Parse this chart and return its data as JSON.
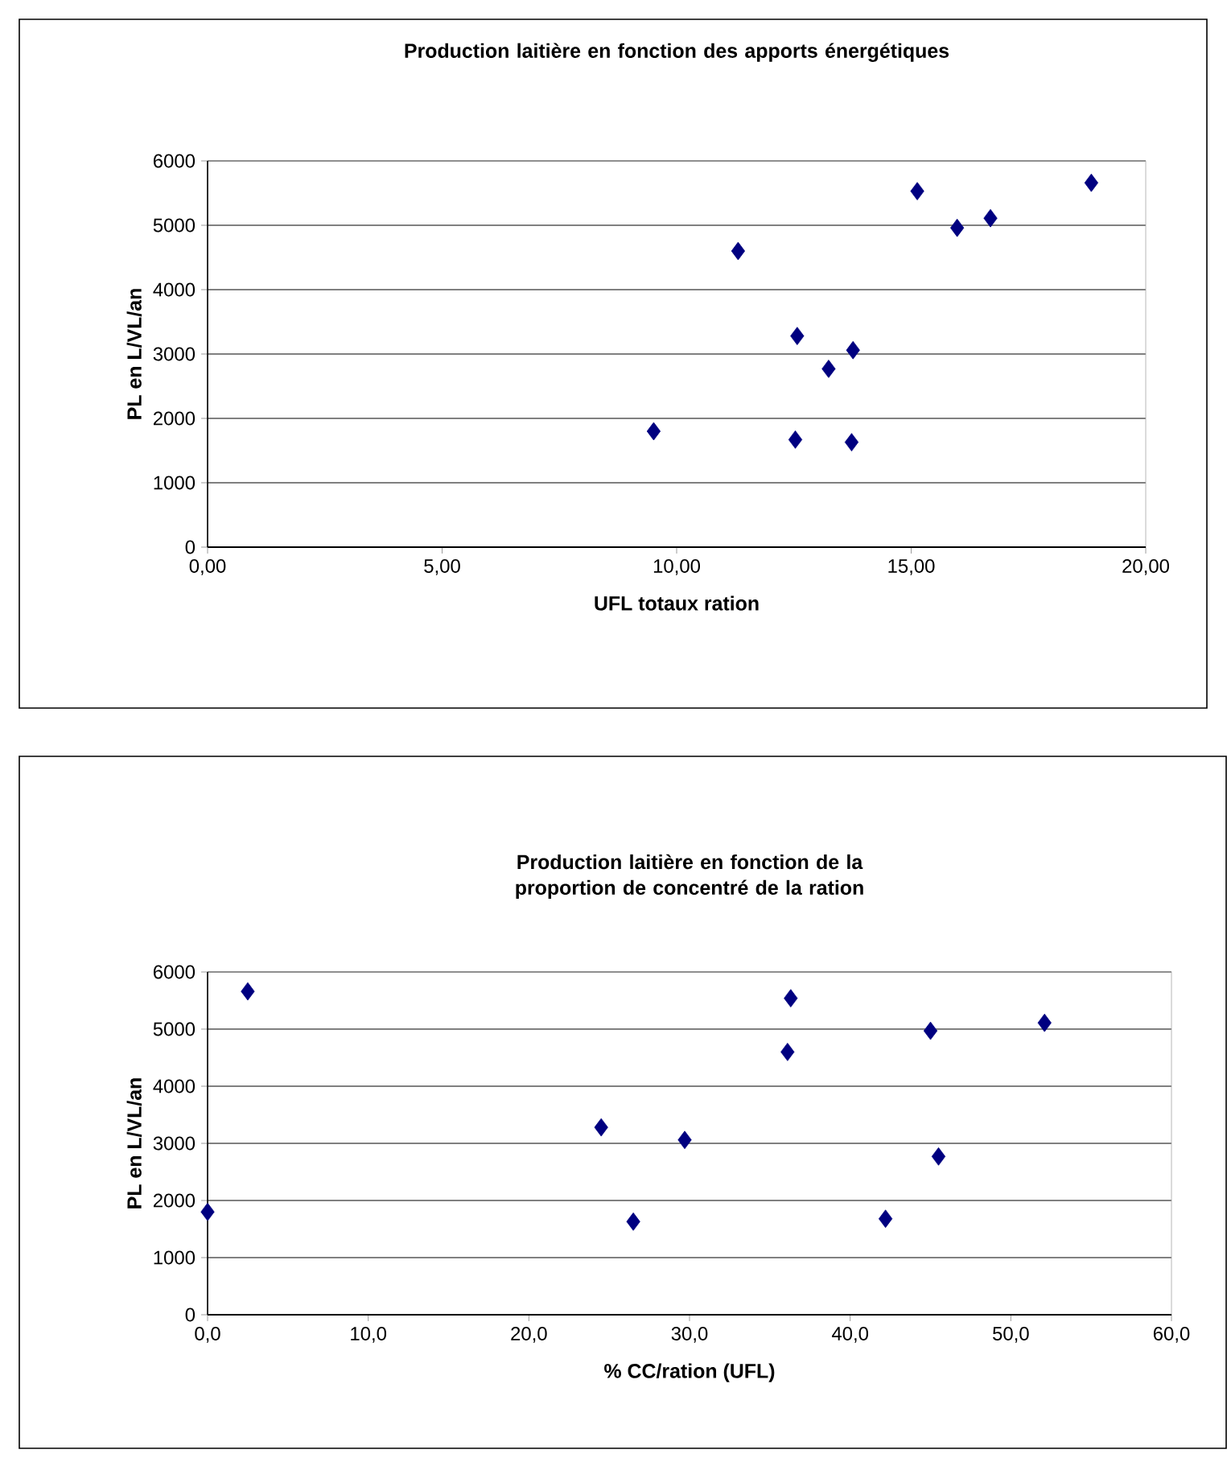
{
  "chart_data": [
    {
      "type": "scatter",
      "title": "Production laitière en fonction des apports énergétiques",
      "xlabel": "UFL totaux ration",
      "ylabel": "PL en L/VL/an",
      "x": [
        9.51,
        11.31,
        12.57,
        13.24,
        13.76,
        12.53,
        13.73,
        15.13,
        15.98,
        16.69,
        18.84
      ],
      "values": [
        1800,
        4600,
        3280,
        2770,
        3060,
        1670,
        1630,
        5530,
        4960,
        5110,
        5660
      ],
      "color": "#000080",
      "marker": "diamond",
      "grid": "y",
      "xlim": [
        0,
        20
      ],
      "ylim": [
        0,
        6000
      ],
      "xticks": [
        {
          "value": 0,
          "label": "0,00"
        },
        {
          "value": 5,
          "label": "5,00"
        },
        {
          "value": 10,
          "label": "10,00"
        },
        {
          "value": 15,
          "label": "15,00"
        },
        {
          "value": 20,
          "label": "20,00"
        }
      ],
      "yticks": [
        0,
        1000,
        2000,
        3000,
        4000,
        5000,
        6000
      ]
    },
    {
      "type": "scatter",
      "title": "Production laitière en fonction de la proportion de concentré de la ration",
      "xlabel": "% CC/ration (UFL)",
      "ylabel": "PL en L/VL/an",
      "x": [
        0,
        2.5,
        24.5,
        26.5,
        29.7,
        36.1,
        36.3,
        42.2,
        45.0,
        45.5,
        52.1
      ],
      "values": [
        1800,
        5660,
        3280,
        1630,
        3060,
        4600,
        5540,
        1680,
        4970,
        2770,
        5110
      ],
      "color": "#000080",
      "marker": "diamond",
      "grid": "y",
      "xlim": [
        0,
        60
      ],
      "ylim": [
        0,
        6000
      ],
      "xticks": [
        {
          "value": 0,
          "label": "0,0"
        },
        {
          "value": 10,
          "label": "10,0"
        },
        {
          "value": 20,
          "label": "20,0"
        },
        {
          "value": 30,
          "label": "30,0"
        },
        {
          "value": 40,
          "label": "40,0"
        },
        {
          "value": 50,
          "label": "50,0"
        },
        {
          "value": 60,
          "label": "60,0"
        }
      ],
      "yticks": [
        0,
        1000,
        2000,
        3000,
        4000,
        5000,
        6000
      ]
    }
  ]
}
